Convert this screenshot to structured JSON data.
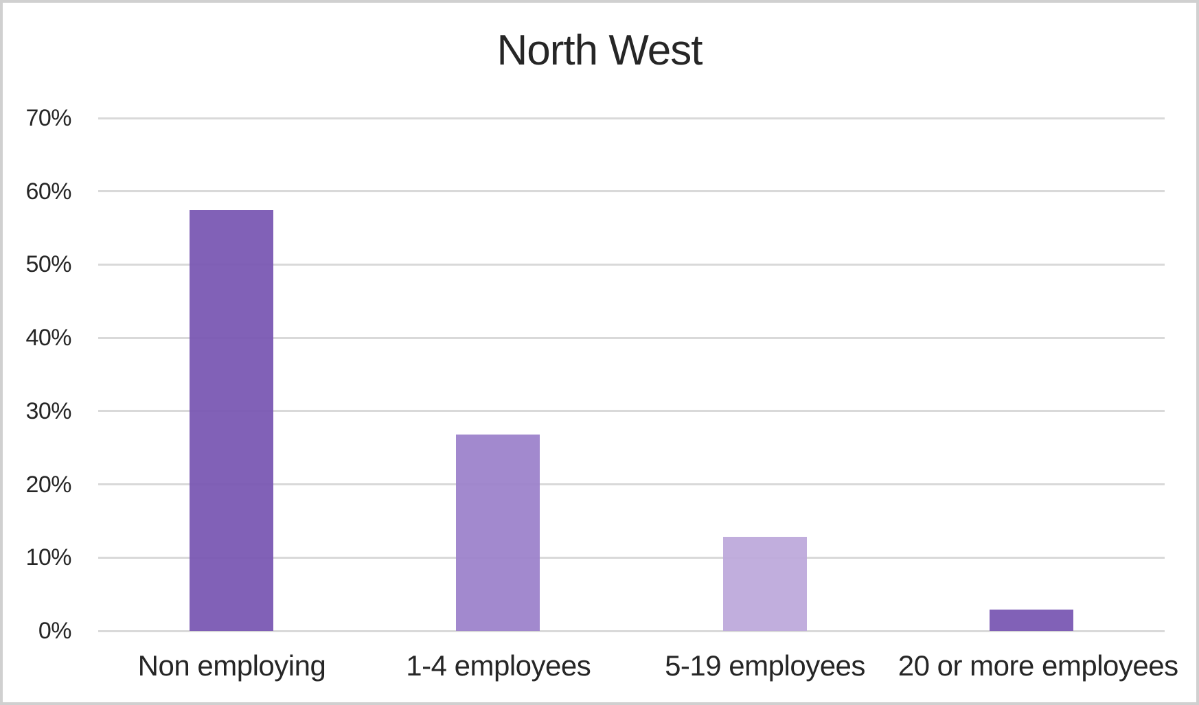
{
  "chart_data": {
    "type": "bar",
    "title": "North West",
    "categories": [
      "Non employing",
      "1-4 employees",
      "5-19 employees",
      "20 or more employees"
    ],
    "values": [
      57.4,
      26.8,
      12.8,
      2.9
    ],
    "value_unit": "%",
    "xlabel": "",
    "ylabel": "",
    "ylim": [
      0,
      70
    ],
    "ytick_values": [
      0,
      10,
      20,
      30,
      40,
      50,
      60,
      70
    ],
    "ytick_labels": [
      "0%",
      "10%",
      "20%",
      "30%",
      "40%",
      "50%",
      "60%",
      "70%"
    ],
    "grid": true,
    "legend": "none",
    "bar_colors": [
      "#7957B3",
      "#9C82CB",
      "#BDA9DB",
      "#7957B3"
    ],
    "gridline_color": "#D9D9D9",
    "axis_text_color": "#262626",
    "title_color": "#262626",
    "frame_border_color": "#D0D0D0",
    "background_color": "#FFFFFF"
  }
}
